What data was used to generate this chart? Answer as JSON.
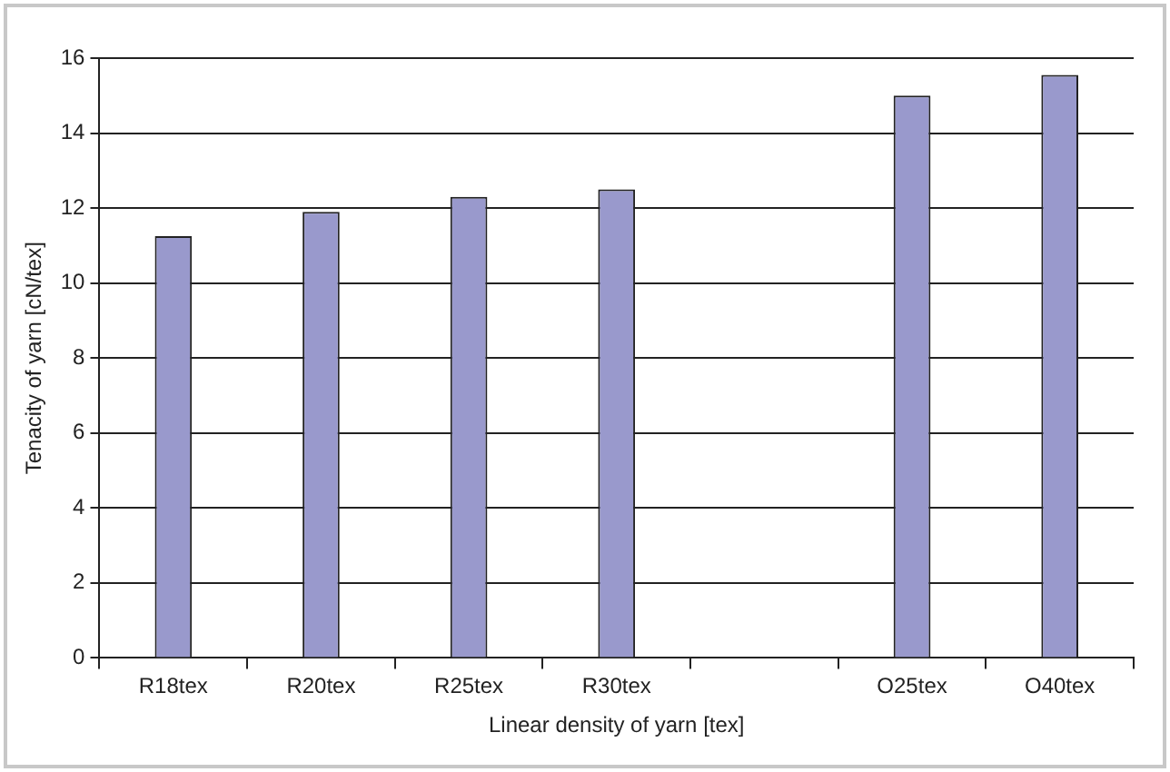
{
  "chart_data": {
    "type": "bar",
    "xlabel": "Linear density of yarn [tex]",
    "ylabel": "Tenacity of yarn [cN/tex]",
    "categories": [
      "R18tex",
      "R20tex",
      "R25tex",
      "R30tex",
      null,
      "O25tex",
      "O40tex"
    ],
    "values": [
      11.25,
      11.9,
      12.3,
      12.5,
      null,
      15.0,
      15.55
    ],
    "color": "#9999cc",
    "ylim": [
      0,
      16
    ],
    "yticks": [
      0,
      2,
      4,
      6,
      8,
      10,
      12,
      14,
      16
    ],
    "grid": "y"
  }
}
